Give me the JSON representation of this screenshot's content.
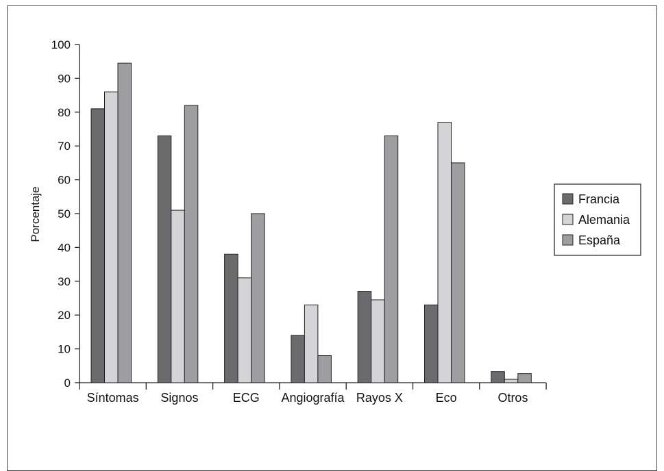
{
  "chart_data": {
    "type": "bar",
    "title": "",
    "xlabel": "",
    "ylabel": "Porcentaje",
    "ylim": [
      0,
      100
    ],
    "yticks": [
      0,
      10,
      20,
      30,
      40,
      50,
      60,
      70,
      80,
      90,
      100
    ],
    "categories": [
      "Síntomas",
      "Signos",
      "ECG",
      "Angiografía",
      "Rayos X",
      "Eco",
      "Otros"
    ],
    "series": [
      {
        "name": "Francia",
        "color": "#6b6b6e",
        "values": [
          81,
          73,
          38,
          14,
          27,
          23,
          3.3
        ]
      },
      {
        "name": "Alemania",
        "color": "#d4d4d6",
        "values": [
          86,
          51,
          31,
          23,
          24.5,
          77,
          1
        ]
      },
      {
        "name": "España",
        "color": "#9e9ea1",
        "values": [
          94.5,
          82,
          50,
          8,
          73,
          65,
          2.7
        ]
      }
    ],
    "legend_position": "right",
    "grid": false
  }
}
